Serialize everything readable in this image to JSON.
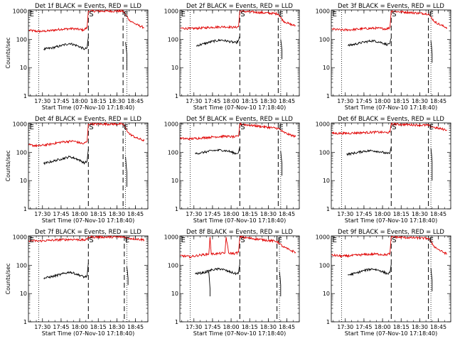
{
  "figure": {
    "background": "#ffffff",
    "event_color": "#000000",
    "lld_color": "#e00000"
  },
  "chart_data": [
    {
      "type": "line",
      "title": "Det 1f BLACK = Events, RED = LLD",
      "xlabel": "Start Time (07-Nov-10 17:18:40)",
      "ylabel": "Counts/sec",
      "yscale": "log",
      "ylim": [
        1,
        1100
      ],
      "xlim": [
        "17:18:40",
        "18:55:00"
      ],
      "xticks": [
        "17:30",
        "17:45",
        "18:00",
        "18:15",
        "18:30",
        "18:45"
      ],
      "yticks": [
        "1",
        "10",
        "100",
        "1000"
      ],
      "markers": [
        {
          "label": "E",
          "time": "17:19"
        },
        {
          "label": "S",
          "time": "18:07"
        },
        {
          "label": "E",
          "time": "18:35"
        }
      ],
      "dotted_lines": [
        "17:27",
        "18:38"
      ],
      "dashed_lines": [
        "18:07",
        "18:35"
      ],
      "series": [
        {
          "color": "#e00000",
          "x": [
            "17:19",
            "17:27",
            "17:35",
            "17:45",
            "17:55",
            "18:03",
            "18:06",
            "18:07",
            "18:35",
            "18:40",
            "18:46",
            "18:52"
          ],
          "values": [
            210,
            190,
            200,
            230,
            240,
            215,
            260,
            1000,
            1000,
            480,
            330,
            260
          ]
        },
        {
          "color": "#000000",
          "x": [
            "17:31",
            "17:38",
            "17:45",
            "17:52",
            "17:58",
            "18:04",
            "18:06",
            "18:07"
          ],
          "values": [
            45,
            50,
            60,
            72,
            60,
            45,
            50,
            120
          ]
        },
        {
          "color": "#000000",
          "x": [
            "18:37",
            "18:38",
            "18:38"
          ],
          "values": [
            80,
            30,
            8
          ]
        }
      ]
    },
    {
      "type": "line",
      "title": "Det 2f BLACK = Events, RED = LLD",
      "xlabel": "Start Time (07-Nov-10 17:18:40)",
      "ylabel": "",
      "yscale": "log",
      "ylim": [
        1,
        1100
      ],
      "xlim": [
        "17:18:40",
        "18:55:00"
      ],
      "xticks": [
        "17:30",
        "17:45",
        "18:00",
        "18:15",
        "18:30",
        "18:45"
      ],
      "yticks": [
        "1",
        "10",
        "100",
        "1000"
      ],
      "markers": [
        {
          "label": "E",
          "time": "17:19"
        },
        {
          "label": "S",
          "time": "18:07"
        },
        {
          "label": "E",
          "time": "18:38"
        }
      ],
      "dotted_lines": [
        "17:27",
        "18:40"
      ],
      "dashed_lines": [
        "18:07",
        "18:38"
      ],
      "series": [
        {
          "color": "#e00000",
          "x": [
            "17:19",
            "17:27",
            "17:35",
            "17:45",
            "17:55",
            "18:03",
            "18:06",
            "18:07",
            "18:38",
            "18:42",
            "18:47",
            "18:52"
          ],
          "values": [
            250,
            240,
            250,
            270,
            280,
            265,
            280,
            1000,
            800,
            450,
            350,
            300
          ]
        },
        {
          "color": "#000000",
          "x": [
            "17:32",
            "17:38",
            "17:45",
            "17:52",
            "17:58",
            "18:04",
            "18:06",
            "18:07"
          ],
          "values": [
            60,
            70,
            85,
            95,
            85,
            75,
            90,
            130
          ]
        },
        {
          "color": "#000000",
          "x": [
            "18:40",
            "18:41",
            "18:41"
          ],
          "values": [
            100,
            40,
            20
          ]
        }
      ]
    },
    {
      "type": "line",
      "title": "Det 3f BLACK = Events, RED = LLD",
      "xlabel": "Start Time (07-Nov-10 17:18:40)",
      "ylabel": "",
      "yscale": "log",
      "ylim": [
        1,
        1100
      ],
      "xlim": [
        "17:18:40",
        "18:55:00"
      ],
      "xticks": [
        "17:30",
        "17:45",
        "18:00",
        "18:15",
        "18:30",
        "18:45"
      ],
      "yticks": [
        "1",
        "10",
        "100",
        "1000"
      ],
      "markers": [
        {
          "label": "E",
          "time": "17:19"
        },
        {
          "label": "S",
          "time": "18:07"
        },
        {
          "label": "E",
          "time": "18:37"
        }
      ],
      "dotted_lines": [
        "17:27",
        "18:39"
      ],
      "dashed_lines": [
        "18:07",
        "18:37"
      ],
      "series": [
        {
          "color": "#e00000",
          "x": [
            "17:19",
            "17:27",
            "17:35",
            "17:45",
            "17:55",
            "18:03",
            "18:06",
            "18:07",
            "18:37",
            "18:42",
            "18:47",
            "18:52"
          ],
          "values": [
            230,
            215,
            220,
            240,
            250,
            235,
            260,
            1000,
            800,
            420,
            320,
            260
          ]
        },
        {
          "color": "#000000",
          "x": [
            "17:32",
            "17:38",
            "17:45",
            "17:52",
            "17:58",
            "18:04",
            "18:06",
            "18:07"
          ],
          "values": [
            60,
            68,
            80,
            90,
            80,
            65,
            75,
            110
          ]
        },
        {
          "color": "#000000",
          "x": [
            "18:39",
            "18:40",
            "18:40"
          ],
          "values": [
            90,
            30,
            15
          ]
        }
      ]
    },
    {
      "type": "line",
      "title": "Det 4f BLACK = Events, RED = LLD",
      "xlabel": "Start Time (07-Nov-10 17:18:40)",
      "ylabel": "Counts/sec",
      "yscale": "log",
      "ylim": [
        1,
        1100
      ],
      "xlim": [
        "17:18:40",
        "18:55:00"
      ],
      "xticks": [
        "17:30",
        "17:45",
        "18:00",
        "18:15",
        "18:30",
        "18:45"
      ],
      "yticks": [
        "1",
        "10",
        "100",
        "1000"
      ],
      "markers": [
        {
          "label": "E",
          "time": "17:19"
        },
        {
          "label": "S",
          "time": "18:07"
        },
        {
          "label": "E",
          "time": "18:35"
        }
      ],
      "dotted_lines": [
        "17:27",
        "18:37"
      ],
      "dashed_lines": [
        "18:07",
        "18:35"
      ],
      "series": [
        {
          "color": "#e00000",
          "x": [
            "17:19",
            "17:27",
            "17:35",
            "17:45",
            "17:55",
            "18:03",
            "18:06",
            "18:07",
            "18:35",
            "18:40",
            "18:46",
            "18:52"
          ],
          "values": [
            180,
            170,
            190,
            230,
            250,
            200,
            240,
            1000,
            1000,
            450,
            320,
            260
          ]
        },
        {
          "color": "#000000",
          "x": [
            "17:31",
            "17:38",
            "17:45",
            "17:52",
            "17:58",
            "18:04",
            "18:06",
            "18:07"
          ],
          "values": [
            40,
            48,
            58,
            70,
            58,
            42,
            48,
            130
          ]
        },
        {
          "color": "#000000",
          "x": [
            "18:37",
            "18:38",
            "18:38"
          ],
          "values": [
            70,
            20,
            6
          ]
        }
      ]
    },
    {
      "type": "line",
      "title": "Det 5f BLACK = Events, RED = LLD",
      "xlabel": "Start Time (07-Nov-10 17:18:40)",
      "ylabel": "",
      "yscale": "log",
      "ylim": [
        1,
        1100
      ],
      "xlim": [
        "17:18:40",
        "18:55:00"
      ],
      "xticks": [
        "17:30",
        "17:45",
        "18:00",
        "18:15",
        "18:30",
        "18:45"
      ],
      "yticks": [
        "1",
        "10",
        "100",
        "1000"
      ],
      "markers": [
        {
          "label": "S",
          "time": "18:07"
        },
        {
          "label": "E",
          "time": "18:38"
        }
      ],
      "dotted_lines": [
        "17:27",
        "18:40"
      ],
      "dashed_lines": [
        "18:07",
        "18:38"
      ],
      "series": [
        {
          "color": "#e00000",
          "x": [
            "17:19",
            "17:27",
            "17:35",
            "17:45",
            "17:55",
            "18:03",
            "18:06",
            "18:07",
            "18:38",
            "18:42",
            "18:47",
            "18:52"
          ],
          "values": [
            310,
            300,
            320,
            350,
            370,
            350,
            370,
            1000,
            700,
            520,
            420,
            360
          ]
        },
        {
          "color": "#000000",
          "x": [
            "17:31",
            "17:38",
            "17:45",
            "17:52",
            "17:58",
            "18:04",
            "18:06",
            "18:07"
          ],
          "values": [
            90,
            100,
            115,
            120,
            110,
            90,
            100,
            150
          ]
        },
        {
          "color": "#000000",
          "x": [
            "18:40",
            "18:41",
            "18:41"
          ],
          "values": [
            110,
            40,
            15
          ]
        }
      ]
    },
    {
      "type": "line",
      "title": "Det 6f BLACK = Events, RED = LLD",
      "xlabel": "Start Time (07-Nov-10 17:18:40)",
      "ylabel": "",
      "yscale": "log",
      "ylim": [
        1,
        1100
      ],
      "xlim": [
        "17:18:40",
        "18:55:00"
      ],
      "xticks": [
        "17:30",
        "17:45",
        "18:00",
        "18:15",
        "18:30",
        "18:45"
      ],
      "yticks": [
        "1",
        "10",
        "100",
        "1000"
      ],
      "markers": [
        {
          "label": "S",
          "time": "18:07"
        },
        {
          "label": "E",
          "time": "18:37"
        }
      ],
      "dotted_lines": [
        "17:27",
        "18:39"
      ],
      "dashed_lines": [
        "18:07",
        "18:37"
      ],
      "series": [
        {
          "color": "#e00000",
          "x": [
            "17:19",
            "17:27",
            "17:35",
            "17:45",
            "17:55",
            "18:03",
            "18:06",
            "18:07",
            "18:37",
            "18:42",
            "18:47",
            "18:52"
          ],
          "values": [
            470,
            470,
            480,
            500,
            520,
            500,
            520,
            1000,
            900,
            750,
            680,
            620
          ]
        },
        {
          "color": "#000000",
          "x": [
            "17:31",
            "17:38",
            "17:45",
            "17:52",
            "17:58",
            "18:04",
            "18:06",
            "18:07"
          ],
          "values": [
            85,
            95,
            110,
            115,
            105,
            90,
            95,
            150
          ]
        },
        {
          "color": "#000000",
          "x": [
            "18:39",
            "18:40",
            "18:40"
          ],
          "values": [
            140,
            45,
            10
          ]
        }
      ]
    },
    {
      "type": "line",
      "title": "Det 7f BLACK = Events, RED = LLD",
      "xlabel": "Start Time (07-Nov-10 17:18:40)",
      "ylabel": "Counts/sec",
      "yscale": "log",
      "ylim": [
        1,
        1100
      ],
      "xlim": [
        "17:18:40",
        "18:55:00"
      ],
      "xticks": [
        "17:30",
        "17:45",
        "18:00",
        "18:15",
        "18:30",
        "18:45"
      ],
      "yticks": [
        "1",
        "10",
        "100",
        "1000"
      ],
      "markers": [
        {
          "label": "E",
          "time": "17:19"
        },
        {
          "label": "S",
          "time": "18:07"
        },
        {
          "label": "E",
          "time": "18:36"
        }
      ],
      "dotted_lines": [
        "17:27",
        "18:38"
      ],
      "dashed_lines": [
        "18:07",
        "18:36"
      ],
      "series": [
        {
          "color": "#e00000",
          "x": [
            "17:19",
            "17:27",
            "17:35",
            "17:45",
            "17:55",
            "18:03",
            "18:06",
            "18:07",
            "18:36",
            "18:40",
            "18:46",
            "18:52"
          ],
          "values": [
            750,
            720,
            760,
            800,
            830,
            780,
            820,
            1000,
            1000,
            900,
            850,
            800
          ]
        },
        {
          "color": "#000000",
          "x": [
            "17:31",
            "17:38",
            "17:45",
            "17:52",
            "17:58",
            "18:04",
            "18:06",
            "18:07"
          ],
          "values": [
            35,
            40,
            48,
            58,
            48,
            38,
            42,
            120
          ]
        },
        {
          "color": "#000000",
          "x": [
            "18:38",
            "18:39",
            "18:39"
          ],
          "values": [
            90,
            35,
            20
          ]
        }
      ]
    },
    {
      "type": "line",
      "title": "Det 8f BLACK = Events, RED = LLD",
      "xlabel": "Start Time (07-Nov-10 17:18:40)",
      "ylabel": "",
      "yscale": "log",
      "ylim": [
        1,
        1100
      ],
      "xlim": [
        "17:18:40",
        "18:55:00"
      ],
      "xticks": [
        "17:30",
        "17:45",
        "18:00",
        "18:15",
        "18:30",
        "18:45"
      ],
      "yticks": [
        "1",
        "10",
        "100",
        "1000"
      ],
      "markers": [
        {
          "label": "E",
          "time": "17:19"
        },
        {
          "label": "S",
          "time": "18:07"
        },
        {
          "label": "E",
          "time": "18:37"
        }
      ],
      "dotted_lines": [
        "17:27",
        "18:39"
      ],
      "dashed_lines": [
        "18:07",
        "18:37"
      ],
      "series": [
        {
          "color": "#e00000",
          "x": [
            "17:19",
            "17:27",
            "17:35",
            "17:42",
            "17:43",
            "17:44",
            "17:50",
            "17:55",
            "17:56",
            "17:58",
            "18:03",
            "18:06",
            "18:07",
            "18:37",
            "18:42",
            "18:47",
            "18:52"
          ],
          "values": [
            220,
            200,
            230,
            250,
            1000,
            250,
            260,
            270,
            1000,
            270,
            260,
            290,
            1000,
            700,
            450,
            350,
            290
          ]
        },
        {
          "color": "#000000",
          "x": [
            "17:31",
            "17:38",
            "17:45",
            "17:52",
            "17:58",
            "18:04",
            "18:06",
            "18:07"
          ],
          "values": [
            50,
            55,
            70,
            75,
            60,
            50,
            55,
            110
          ]
        },
        {
          "color": "#000000",
          "x": [
            "17:42",
            "17:43",
            "17:43"
          ],
          "values": [
            60,
            15,
            8
          ]
        },
        {
          "color": "#000000",
          "x": [
            "18:39",
            "18:40",
            "18:40"
          ],
          "values": [
            60,
            20,
            8
          ]
        }
      ]
    },
    {
      "type": "line",
      "title": "Det 9f BLACK = Events, RED = LLD",
      "xlabel": "Start Time (07-Nov-10 17:18:40)",
      "ylabel": "",
      "yscale": "log",
      "ylim": [
        1,
        1100
      ],
      "xlim": [
        "17:18:40",
        "18:55:00"
      ],
      "xticks": [
        "17:30",
        "17:45",
        "18:00",
        "18:15",
        "18:30",
        "18:45"
      ],
      "yticks": [
        "1",
        "10",
        "100",
        "1000"
      ],
      "markers": [
        {
          "label": "E",
          "time": "17:19"
        },
        {
          "label": "S",
          "time": "18:07"
        },
        {
          "label": "E",
          "time": "18:37"
        }
      ],
      "dotted_lines": [
        "17:27",
        "18:39"
      ],
      "dashed_lines": [
        "18:07",
        "18:37"
      ],
      "series": [
        {
          "color": "#e00000",
          "x": [
            "17:19",
            "17:27",
            "17:35",
            "17:45",
            "17:55",
            "18:03",
            "18:06",
            "18:07",
            "18:37",
            "18:42",
            "18:47",
            "18:52"
          ],
          "values": [
            230,
            210,
            220,
            240,
            250,
            235,
            260,
            1000,
            900,
            450,
            320,
            250
          ]
        },
        {
          "color": "#000000",
          "x": [
            "17:32",
            "17:38",
            "17:45",
            "17:52",
            "17:58",
            "18:04",
            "18:06",
            "18:07"
          ],
          "values": [
            45,
            52,
            65,
            75,
            65,
            50,
            55,
            110
          ]
        },
        {
          "color": "#000000",
          "x": [
            "18:39",
            "18:40",
            "18:40"
          ],
          "values": [
            80,
            30,
            12
          ]
        }
      ]
    }
  ]
}
